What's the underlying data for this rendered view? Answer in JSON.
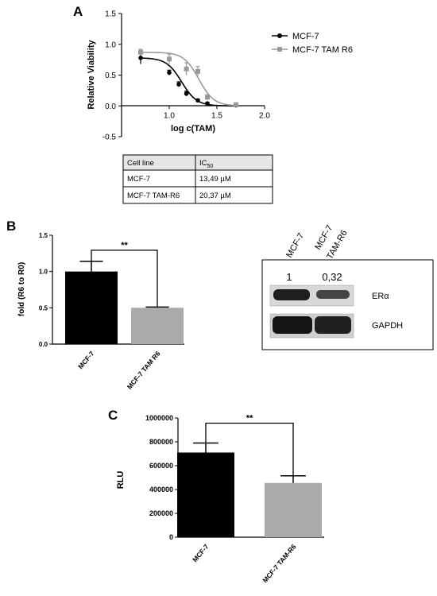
{
  "panels": {
    "a": "A",
    "b": "B",
    "c": "C"
  },
  "chart_data": [
    {
      "panel": "A",
      "type": "line",
      "xlabel": "log c(TAM)",
      "ylabel": "Relative Viability",
      "xlim": [
        0.5,
        2.0
      ],
      "ylim": [
        -0.5,
        1.5
      ],
      "xticks": [
        "1.0",
        "1.5",
        "2.0"
      ],
      "yticks": [
        "-0.5",
        "0.0",
        "0.5",
        "1.0",
        "1.5"
      ],
      "legend_position": "right",
      "series": [
        {
          "name": "MCF-7",
          "color": "#000000",
          "points": [
            {
              "x": 0.7,
              "y": 0.78,
              "err": 0.1
            },
            {
              "x": 1.0,
              "y": 0.54,
              "err": 0.04
            },
            {
              "x": 1.1,
              "y": 0.35,
              "err": 0.04
            },
            {
              "x": 1.18,
              "y": 0.2,
              "err": 0.04
            },
            {
              "x": 1.3,
              "y": 0.09,
              "err": 0.02
            },
            {
              "x": 1.4,
              "y": 0.04,
              "err": 0.02
            },
            {
              "x": 1.7,
              "y": 0.01,
              "err": 0.01
            }
          ],
          "ic50_log": 1.13
        },
        {
          "name": "MCF-7 TAM R6",
          "color": "#9a9a9a",
          "points": [
            {
              "x": 0.7,
              "y": 0.87,
              "err": 0.05
            },
            {
              "x": 1.0,
              "y": 0.76,
              "err": 0.08
            },
            {
              "x": 1.18,
              "y": 0.6,
              "err": 0.1
            },
            {
              "x": 1.3,
              "y": 0.56,
              "err": 0.08
            },
            {
              "x": 1.4,
              "y": 0.14,
              "err": 0.04
            },
            {
              "x": 1.7,
              "y": 0.02,
              "err": 0.01
            }
          ],
          "ic50_log": 1.31
        }
      ]
    },
    {
      "panel": "A",
      "type": "table",
      "columns": [
        "Cell line",
        "IC",
        "50"
      ],
      "rows": [
        [
          "MCF-7",
          "13,49 µM"
        ],
        [
          "MCF-7 TAM-R6",
          "20,37 µM"
        ]
      ]
    },
    {
      "panel": "B",
      "type": "bar",
      "ylabel": "fold (R6 to R0)",
      "ylim": [
        0.0,
        1.5
      ],
      "yticks": [
        "0.0",
        "0.5",
        "1.0",
        "1.5"
      ],
      "categories": [
        "MCF-7",
        "MCF-7 TAM R6"
      ],
      "values": [
        1.0,
        0.5
      ],
      "errors": [
        0.14,
        0.01
      ],
      "colors": [
        "#000000",
        "#aaaaaa"
      ],
      "significance": "**"
    },
    {
      "panel": "B",
      "type": "other",
      "blot": {
        "lanes": [
          "MCF-7",
          "MCF-7 TAM-R6"
        ],
        "quantification": [
          "1",
          "0,32"
        ],
        "bands": [
          "ERα",
          "GAPDH"
        ]
      }
    },
    {
      "panel": "C",
      "type": "bar",
      "ylabel": "RLU",
      "ylim": [
        0,
        1000000
      ],
      "yticks": [
        "0",
        "200000",
        "400000",
        "600000",
        "800000",
        "1000000"
      ],
      "categories": [
        "MCF-7",
        "MCF-7 TAM-R6"
      ],
      "values": [
        710000,
        455000
      ],
      "errors": [
        80000,
        60000
      ],
      "colors": [
        "#000000",
        "#aaaaaa"
      ],
      "significance": "**"
    }
  ]
}
